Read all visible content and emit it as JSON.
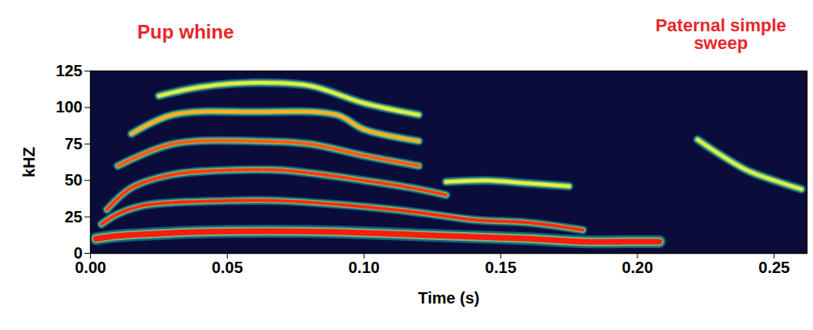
{
  "chart_data": {
    "type": "line",
    "x_label": "Time (s)",
    "y_label": "kHZ",
    "annotations": [
      "Pup whine",
      "Paternal simple sweep"
    ],
    "xlim": [
      0,
      0.262
    ],
    "ylim": [
      0,
      125
    ],
    "xticks": [
      {
        "value": 0,
        "label": "0.00"
      },
      {
        "value": 0.05,
        "label": "0.05"
      },
      {
        "value": 0.1,
        "label": "0.10"
      },
      {
        "value": 0.15,
        "label": "0.15"
      },
      {
        "value": 0.2,
        "label": "0.20"
      },
      {
        "value": 0.25,
        "label": "0.25"
      }
    ],
    "yticks": [
      0,
      25,
      50,
      75,
      100,
      125
    ],
    "grid": false,
    "series": [
      {
        "color": "#ff1a10",
        "x": [
          0.002,
          0.01,
          0.03,
          0.05,
          0.08,
          0.1,
          0.13,
          0.16,
          0.18,
          0.2,
          0.208
        ],
        "values": [
          10,
          12,
          14,
          15,
          15,
          14,
          12,
          10,
          8,
          8,
          8
        ]
      },
      {
        "color": "#ff2a10",
        "x": [
          0.004,
          0.01,
          0.02,
          0.05,
          0.07,
          0.1,
          0.12,
          0.14,
          0.16,
          0.18
        ],
        "values": [
          20,
          27,
          33,
          36,
          36,
          32,
          28,
          23,
          21,
          16
        ]
      },
      {
        "color": "#ff3a12",
        "x": [
          0.006,
          0.015,
          0.03,
          0.05,
          0.07,
          0.1,
          0.12,
          0.13
        ],
        "values": [
          30,
          45,
          54,
          57,
          57,
          50,
          44,
          40
        ]
      },
      {
        "color": "#e8f040",
        "x": [
          0.13,
          0.145,
          0.16,
          0.175
        ],
        "values": [
          49,
          50,
          48,
          46
        ]
      },
      {
        "color": "#ff5a14",
        "x": [
          0.01,
          0.03,
          0.06,
          0.08,
          0.1,
          0.12
        ],
        "values": [
          60,
          75,
          77,
          75,
          67,
          60
        ]
      },
      {
        "color": "#ffb020",
        "x": [
          0.015,
          0.03,
          0.06,
          0.09,
          0.1,
          0.12
        ],
        "values": [
          82,
          95,
          97,
          95,
          85,
          77
        ]
      },
      {
        "color": "#e0f040",
        "x": [
          0.025,
          0.04,
          0.06,
          0.08,
          0.1,
          0.12
        ],
        "values": [
          108,
          114,
          117,
          115,
          103,
          95
        ]
      },
      {
        "color": "#d8f048",
        "x": [
          0.222,
          0.23,
          0.24,
          0.25,
          0.26
        ],
        "values": [
          78,
          68,
          57,
          50,
          44
        ]
      }
    ]
  }
}
